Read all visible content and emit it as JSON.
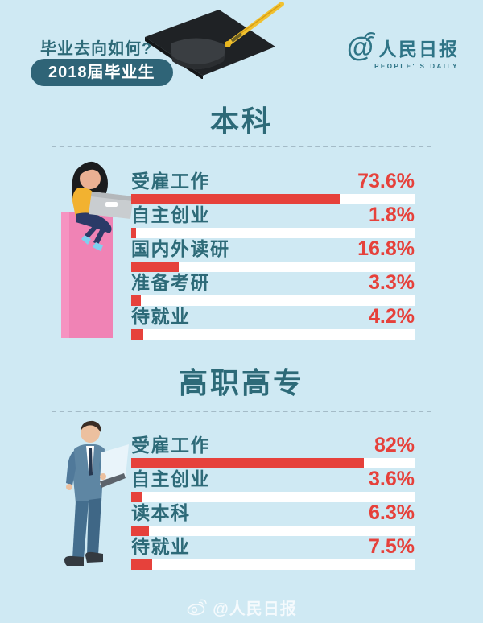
{
  "theme": {
    "background": "#cfe9f3",
    "accent_red": "#e6413b",
    "teal": "#2d6a78",
    "badge_bg": "#2f6477",
    "dash_color": "#a4bbc7",
    "logo_teal": "#2e7486",
    "watermark": "rgba(255,255,255,0.78)",
    "pillar_pink": "#f083b5"
  },
  "header": {
    "question": "毕业去向如何?",
    "badge": "2018届毕业生",
    "logo_at": "@",
    "logo_cn": "人民日报",
    "logo_en": "PEOPLE' S DAILY"
  },
  "icons": {
    "graduation_cap": "black mortarboard with yellow tassel",
    "at_with_waves": "at-sign with sound waves (People's Daily weibo logo)",
    "weibo_eye": "weibo eye watermark icon"
  },
  "illustrations": {
    "section1": "woman with laptop sitting on pink pillar",
    "section2": "businessman in blue suit reading a document"
  },
  "chart_data": [
    {
      "type": "bar",
      "orientation": "horizontal",
      "title": "本科",
      "categories": [
        "受雇工作",
        "自主创业",
        "国内外读研",
        "准备考研",
        "待就业"
      ],
      "values": [
        73.6,
        1.8,
        16.8,
        3.3,
        4.2
      ],
      "value_labels": [
        "73.6%",
        "1.8%",
        "16.8%",
        "3.3%",
        "4.2%"
      ],
      "xlim": [
        0,
        100
      ],
      "bar_color": "#e6413b",
      "track_color": "#ffffff",
      "grid": false,
      "legend": false
    },
    {
      "type": "bar",
      "orientation": "horizontal",
      "title": "高职高专",
      "categories": [
        "受雇工作",
        "自主创业",
        "读本科",
        "待就业"
      ],
      "values": [
        82,
        3.6,
        6.3,
        7.5
      ],
      "value_labels": [
        "82%",
        "3.6%",
        "6.3%",
        "7.5%"
      ],
      "xlim": [
        0,
        100
      ],
      "bar_color": "#e6413b",
      "track_color": "#ffffff",
      "grid": false,
      "legend": false
    }
  ],
  "footer": {
    "watermark": "@人民日报"
  }
}
